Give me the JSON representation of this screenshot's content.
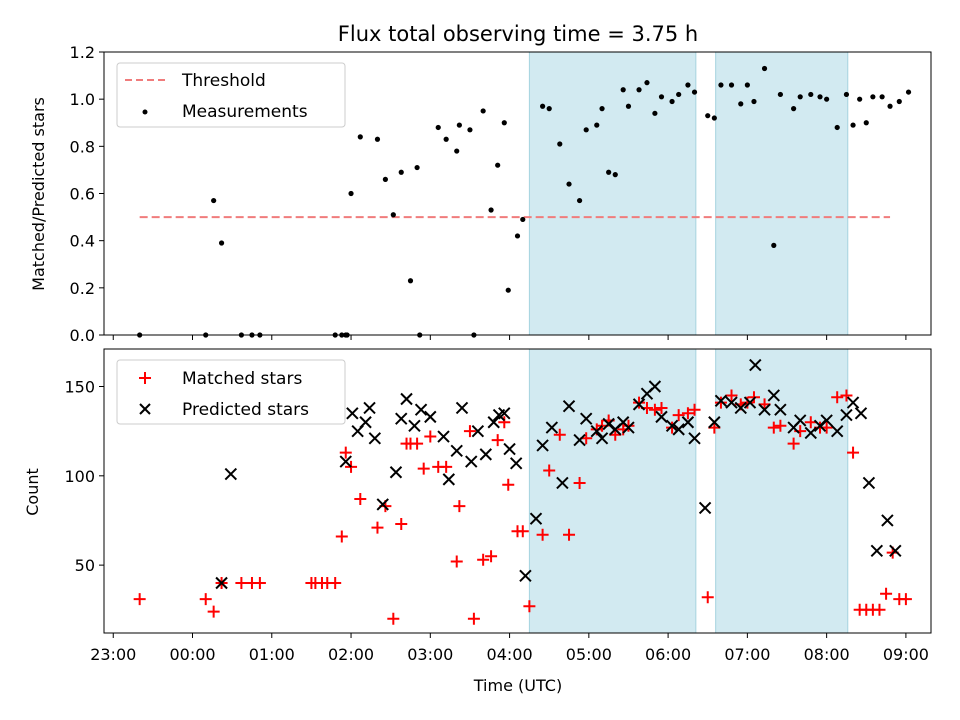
{
  "chart_data": [
    {
      "type": "scatter",
      "title": "Flux total observing time = 3.75 h",
      "xlabel": "",
      "ylabel": "Matched/Predicted stars",
      "xlim": [
        "22:53",
        "09:19"
      ],
      "ylim": [
        0,
        1.2
      ],
      "yticks": [
        "0.0",
        "0.2",
        "0.4",
        "0.6",
        "0.8",
        "1.0",
        "1.2"
      ],
      "shaded_intervals": [
        [
          "04:15",
          "06:21"
        ],
        [
          "06:36",
          "08:16"
        ]
      ],
      "legend": {
        "position": "top-left",
        "entries": [
          "Threshold",
          "Measurements"
        ]
      },
      "series": [
        {
          "name": "Threshold",
          "kind": "line",
          "color": "#f07c7c",
          "x": [
            "23:20",
            "08:48"
          ],
          "y": [
            0.5,
            0.5
          ]
        },
        {
          "name": "Measurements",
          "kind": "points",
          "color": "#000000",
          "x": [
            "23:20",
            "00:10",
            "00:16",
            "00:22",
            "00:37",
            "00:45",
            "00:51",
            "01:48",
            "01:53",
            "02:00",
            "01:57",
            "01:56",
            "02:07",
            "02:20",
            "02:26",
            "02:32",
            "02:38",
            "02:45",
            "02:50",
            "02:52",
            "03:06",
            "03:12",
            "03:20",
            "03:22",
            "03:30",
            "03:33",
            "03:40",
            "03:46",
            "03:51",
            "03:56",
            "03:59",
            "04:06",
            "04:10",
            "04:25",
            "04:30",
            "04:38",
            "04:45",
            "04:53",
            "04:58",
            "05:06",
            "05:10",
            "05:15",
            "05:20",
            "05:26",
            "05:30",
            "05:38",
            "05:44",
            "05:50",
            "05:55",
            "06:03",
            "06:08",
            "06:15",
            "06:20",
            "06:30",
            "06:35",
            "06:40",
            "06:48",
            "06:55",
            "07:00",
            "07:05",
            "07:13",
            "07:20",
            "07:25",
            "07:35",
            "07:40",
            "07:48",
            "07:55",
            "08:00",
            "08:08",
            "08:15",
            "08:20",
            "08:25",
            "08:30",
            "08:35",
            "08:42",
            "08:48",
            "08:55",
            "09:02"
          ],
          "y": [
            0.0,
            0.0,
            0.57,
            0.39,
            0.0,
            0.0,
            0.0,
            0.0,
            0.0,
            0.6,
            0.0,
            0.0,
            0.84,
            0.83,
            0.66,
            0.51,
            0.69,
            0.23,
            0.71,
            0.0,
            0.88,
            0.83,
            0.78,
            0.89,
            0.87,
            0.0,
            0.95,
            0.53,
            0.72,
            0.9,
            0.19,
            0.42,
            0.49,
            0.97,
            0.96,
            0.81,
            0.64,
            0.57,
            0.87,
            0.89,
            0.96,
            0.69,
            0.68,
            1.04,
            0.97,
            1.04,
            1.07,
            0.94,
            1.01,
            0.99,
            1.02,
            1.06,
            1.03,
            0.93,
            0.92,
            1.06,
            1.06,
            0.98,
            1.06,
            0.99,
            1.13,
            0.38,
            1.02,
            0.96,
            1.01,
            1.02,
            1.01,
            1.0,
            0.88,
            1.02,
            0.89,
            1.0,
            0.9,
            1.01,
            1.01,
            0.97,
            0.99,
            1.03
          ]
        }
      ]
    },
    {
      "type": "scatter",
      "title": "",
      "xlabel": "Time (UTC)",
      "ylabel": "Count",
      "xlim": [
        "22:53",
        "09:19"
      ],
      "ylim": [
        12,
        171
      ],
      "yticks": [
        "50",
        "100",
        "150"
      ],
      "xticks": [
        "23:00",
        "00:00",
        "01:00",
        "02:00",
        "03:00",
        "04:00",
        "05:00",
        "06:00",
        "07:00",
        "08:00",
        "09:00"
      ],
      "shaded_intervals": [
        [
          "04:15",
          "06:21"
        ],
        [
          "06:36",
          "08:16"
        ]
      ],
      "legend": {
        "position": "top-left",
        "entries": [
          "Matched stars",
          "Predicted stars"
        ]
      },
      "series": [
        {
          "name": "Matched stars",
          "marker": "+",
          "color": "#ff0000",
          "x": [
            "23:20",
            "00:10",
            "00:16",
            "00:22",
            "00:37",
            "00:45",
            "00:51",
            "01:30",
            "01:33",
            "01:38",
            "01:42",
            "01:48",
            "01:53",
            "01:56",
            "02:00",
            "02:07",
            "02:20",
            "02:26",
            "02:32",
            "02:38",
            "02:42",
            "02:45",
            "02:50",
            "02:55",
            "03:00",
            "03:06",
            "03:12",
            "03:20",
            "03:22",
            "03:30",
            "03:33",
            "03:40",
            "03:46",
            "03:51",
            "03:56",
            "03:59",
            "04:06",
            "04:10",
            "04:15",
            "04:25",
            "04:30",
            "04:38",
            "04:45",
            "04:53",
            "04:58",
            "05:06",
            "05:10",
            "05:15",
            "05:20",
            "05:26",
            "05:30",
            "05:38",
            "05:44",
            "05:50",
            "05:55",
            "06:03",
            "06:08",
            "06:15",
            "06:20",
            "06:30",
            "06:35",
            "06:40",
            "06:48",
            "06:55",
            "07:00",
            "07:05",
            "07:13",
            "07:20",
            "07:25",
            "07:35",
            "07:40",
            "07:48",
            "07:55",
            "08:00",
            "08:08",
            "08:15",
            "08:20",
            "08:25",
            "08:30",
            "08:35",
            "08:40",
            "08:45",
            "08:50",
            "08:55",
            "09:00"
          ],
          "y": [
            31,
            31,
            24,
            40,
            40,
            40,
            40,
            40,
            40,
            40,
            40,
            40,
            66,
            113,
            105,
            87,
            71,
            83,
            20,
            73,
            118,
            118,
            118,
            104,
            122,
            105,
            105,
            52,
            83,
            125,
            20,
            53,
            55,
            120,
            130,
            95,
            69,
            69,
            27,
            67,
            103,
            123,
            67,
            96,
            121,
            126,
            128,
            131,
            123,
            126,
            128,
            141,
            138,
            137,
            138,
            127,
            134,
            135,
            137,
            32,
            127,
            141,
            145,
            140,
            141,
            144,
            140,
            127,
            128,
            118,
            125,
            130,
            127,
            127,
            144,
            145,
            113,
            25,
            25,
            25,
            25,
            34,
            57,
            31,
            31
          ]
        },
        {
          "name": "Predicted stars",
          "marker": "x",
          "color": "#000000",
          "x": [
            "00:22",
            "00:29",
            "01:56",
            "02:01",
            "02:05",
            "02:11",
            "02:14",
            "02:18",
            "02:24",
            "02:34",
            "02:38",
            "02:42",
            "02:48",
            "02:53",
            "03:00",
            "03:10",
            "03:14",
            "03:20",
            "03:24",
            "03:31",
            "03:36",
            "03:42",
            "03:48",
            "03:52",
            "03:56",
            "04:00",
            "04:05",
            "04:12",
            "04:20",
            "04:25",
            "04:32",
            "04:40",
            "04:45",
            "04:53",
            "04:58",
            "05:06",
            "05:10",
            "05:15",
            "05:20",
            "05:26",
            "05:30",
            "05:38",
            "05:44",
            "05:50",
            "05:55",
            "06:03",
            "06:08",
            "06:15",
            "06:20",
            "06:28",
            "06:35",
            "06:40",
            "06:48",
            "06:55",
            "07:02",
            "07:06",
            "07:13",
            "07:20",
            "07:25",
            "07:35",
            "07:40",
            "07:48",
            "07:55",
            "08:00",
            "08:08",
            "08:15",
            "08:20",
            "08:26",
            "08:32",
            "08:38",
            "08:46",
            "08:52"
          ],
          "y": [
            40,
            101,
            108,
            135,
            125,
            130,
            138,
            121,
            84,
            102,
            132,
            143,
            128,
            137,
            133,
            122,
            98,
            114,
            138,
            108,
            125,
            112,
            130,
            134,
            135,
            115,
            107,
            44,
            76,
            117,
            127,
            96,
            139,
            120,
            132,
            125,
            121,
            129,
            126,
            130,
            127,
            140,
            146,
            150,
            133,
            128,
            126,
            130,
            121,
            82,
            130,
            142,
            141,
            138,
            141,
            162,
            137,
            145,
            137,
            127,
            131,
            124,
            128,
            131,
            125,
            134,
            141,
            135,
            96,
            58,
            75,
            58
          ]
        }
      ]
    }
  ]
}
